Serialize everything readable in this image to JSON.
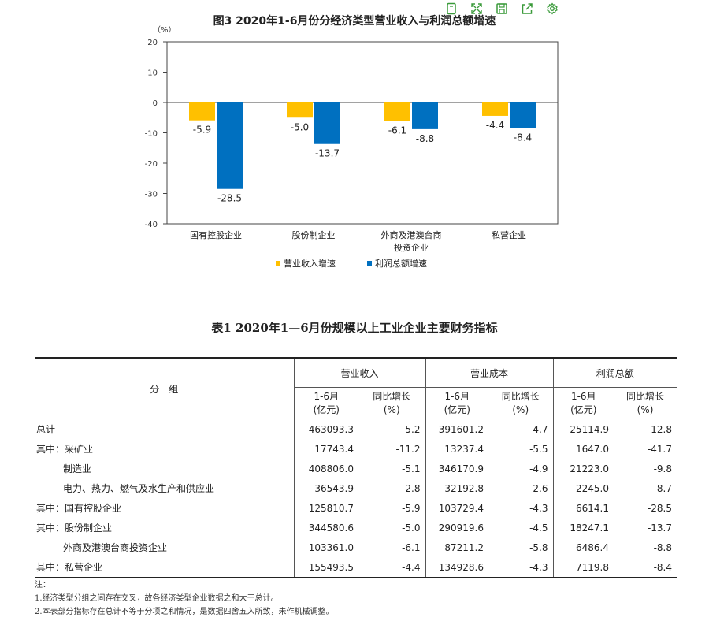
{
  "toolbar": {
    "icons": [
      "copy-icon",
      "fullscreen-icon",
      "save-icon",
      "share-icon",
      "settings-icon"
    ]
  },
  "chart_data": {
    "type": "bar",
    "title": "图3  2020年1-6月份分经济类型营业收入与利润总额增速",
    "unit_label": "（%）",
    "categories": [
      [
        "国有控股企业"
      ],
      [
        "股份制企业"
      ],
      [
        "外商及港澳台商",
        "投资企业"
      ],
      [
        "私营企业"
      ]
    ],
    "series": [
      {
        "name": "营业收入增速",
        "color": "#FFC000",
        "values": [
          -5.9,
          -5.0,
          -6.1,
          -4.4
        ]
      },
      {
        "name": "利润总额增速",
        "color": "#0070C0",
        "values": [
          -28.5,
          -13.7,
          -8.8,
          -8.4
        ]
      }
    ],
    "ylim": [
      -40,
      20
    ],
    "yticks": [
      20,
      10,
      0,
      -10,
      -20,
      -30,
      -40
    ],
    "legend_position": "bottom",
    "grid": false
  },
  "table": {
    "title": "表1  2020年1—6月份规模以上工业企业主要财务指标",
    "group_header": "分　组",
    "groups": [
      "营业收入",
      "营业成本",
      "利润总额"
    ],
    "sub_headers": [
      [
        "1-6月",
        "(亿元)"
      ],
      [
        "同比增长",
        "(%)"
      ],
      [
        "1-6月",
        "(亿元)"
      ],
      [
        "同比增长",
        "(%)"
      ],
      [
        "1-6月",
        "(亿元)"
      ],
      [
        "同比增长",
        "(%)"
      ]
    ],
    "rows": [
      {
        "label": "总计",
        "indent": false,
        "values": [
          "463093.3",
          "-5.2",
          "391601.2",
          "-4.7",
          "25114.9",
          "-12.8"
        ]
      },
      {
        "label": "其中：采矿业",
        "indent": false,
        "values": [
          "17743.4",
          "-11.2",
          "13237.4",
          "-5.5",
          "1647.0",
          "-41.7"
        ]
      },
      {
        "label": "制造业",
        "indent": true,
        "values": [
          "408806.0",
          "-5.1",
          "346170.9",
          "-4.9",
          "21223.0",
          "-9.8"
        ]
      },
      {
        "label": "电力、热力、燃气及水生产和供应业",
        "indent": true,
        "values": [
          "36543.9",
          "-2.8",
          "32192.8",
          "-2.6",
          "2245.0",
          "-8.7"
        ]
      },
      {
        "label": "其中：国有控股企业",
        "indent": false,
        "values": [
          "125810.7",
          "-5.9",
          "103729.4",
          "-4.3",
          "6614.1",
          "-28.5"
        ]
      },
      {
        "label": "其中：股份制企业",
        "indent": false,
        "values": [
          "344580.6",
          "-5.0",
          "290919.6",
          "-4.5",
          "18247.1",
          "-13.7"
        ]
      },
      {
        "label": "外商及港澳台商投资企业",
        "indent": true,
        "values": [
          "103361.0",
          "-6.1",
          "87211.2",
          "-5.8",
          "6486.4",
          "-8.8"
        ]
      },
      {
        "label": "其中：私营企业",
        "indent": false,
        "values": [
          "155493.5",
          "-4.4",
          "134928.6",
          "-4.3",
          "7119.8",
          "-8.4"
        ]
      }
    ]
  },
  "notes": [
    "注：",
    "1.经济类型分组之间存在交叉，故各经济类型企业数据之和大于总计。",
    "2.本表部分指标存在总计不等于分项之和情况，是数据四舍五入所致，未作机械调整。"
  ]
}
